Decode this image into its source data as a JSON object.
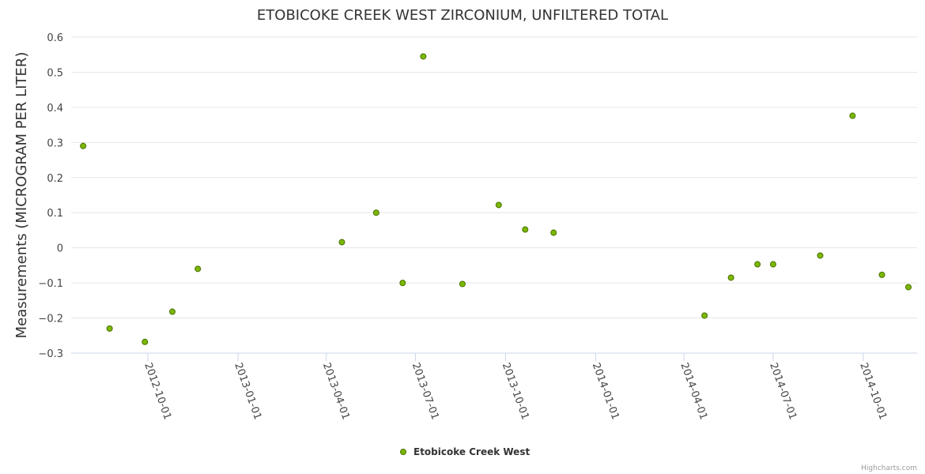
{
  "chart_data": {
    "type": "scatter",
    "title": "ETOBICOKE CREEK WEST ZIRCONIUM, UNFILTERED TOTAL",
    "xlabel": "",
    "ylabel": "Measurements (MICROGRAM PER LITER)",
    "ylim": [
      -0.3,
      0.6
    ],
    "yticks": [
      0.6,
      0.5,
      0.4,
      0.3,
      0.2,
      0.1,
      0,
      -0.1,
      -0.2,
      -0.3
    ],
    "ytick_labels": [
      "0.6",
      "0.5",
      "0.4",
      "0.3",
      "0.2",
      "0.1",
      "0",
      "−0.1",
      "−0.2",
      "−0.3"
    ],
    "xticks": [
      "2012-10-01",
      "2013-01-01",
      "2013-04-01",
      "2013-07-01",
      "2013-10-01",
      "2014-01-01",
      "2014-04-01",
      "2014-07-01",
      "2014-10-01"
    ],
    "xlim": [
      "2012-07-10",
      "2014-11-30"
    ],
    "grid": true,
    "legend_position": "bottom-center",
    "series": [
      {
        "name": "Etobicoke Creek West",
        "color": "#7ab800",
        "points": [
          {
            "x": "2012-07-27",
            "y": 0.29
          },
          {
            "x": "2012-08-23",
            "y": -0.23
          },
          {
            "x": "2012-09-28",
            "y": -0.268
          },
          {
            "x": "2012-10-26",
            "y": -0.182
          },
          {
            "x": "2012-11-21",
            "y": -0.06
          },
          {
            "x": "2013-04-17",
            "y": 0.016
          },
          {
            "x": "2013-05-22",
            "y": 0.1
          },
          {
            "x": "2013-06-18",
            "y": -0.1
          },
          {
            "x": "2013-07-09",
            "y": 0.545
          },
          {
            "x": "2013-08-18",
            "y": -0.103
          },
          {
            "x": "2013-09-24",
            "y": 0.122
          },
          {
            "x": "2013-10-21",
            "y": 0.052
          },
          {
            "x": "2013-11-19",
            "y": 0.043
          },
          {
            "x": "2014-04-22",
            "y": -0.193
          },
          {
            "x": "2014-05-19",
            "y": -0.085
          },
          {
            "x": "2014-06-15",
            "y": -0.047
          },
          {
            "x": "2014-07-01",
            "y": -0.047
          },
          {
            "x": "2014-08-18",
            "y": -0.022
          },
          {
            "x": "2014-09-20",
            "y": 0.376
          },
          {
            "x": "2014-10-20",
            "y": -0.077
          },
          {
            "x": "2014-11-16",
            "y": -0.112
          }
        ]
      }
    ]
  },
  "credits": "Highcharts.com"
}
